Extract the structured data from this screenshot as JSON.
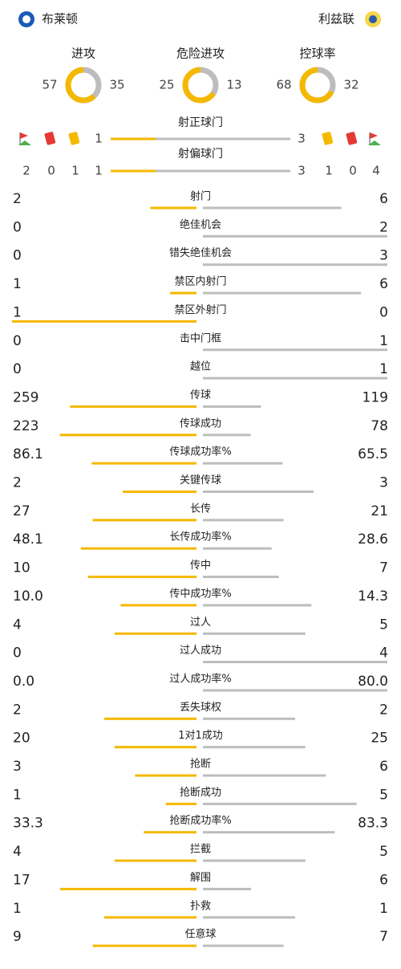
{
  "header": {
    "home": "布莱顿",
    "away": "利兹联"
  },
  "summary": [
    {
      "name": "进攻",
      "home": 57,
      "away": 35
    },
    {
      "name": "危险进攻",
      "home": 25,
      "away": 13
    },
    {
      "name": "控球率",
      "home": 68,
      "away": 32
    }
  ],
  "shots": [
    {
      "name": "射正球门",
      "home": 1,
      "away": 3
    },
    {
      "name": "射偏球门",
      "home": 1,
      "away": 3
    }
  ],
  "cards": {
    "home": {
      "corners": 2,
      "red": 0,
      "yellow": 1
    },
    "away": {
      "yellow": 1,
      "red": 0,
      "corners": 4
    }
  },
  "stats": [
    {
      "name": "射门",
      "home": 2,
      "away": 6
    },
    {
      "name": "绝佳机会",
      "home": 0,
      "away": 2
    },
    {
      "name": "错失绝佳机会",
      "home": 0,
      "away": 3
    },
    {
      "name": "禁区内射门",
      "home": 1,
      "away": 6
    },
    {
      "name": "禁区外射门",
      "home": 1,
      "away": 0
    },
    {
      "name": "击中门框",
      "home": 0,
      "away": 1
    },
    {
      "name": "越位",
      "home": 0,
      "away": 1
    },
    {
      "name": "传球",
      "home": 259,
      "away": 119
    },
    {
      "name": "传球成功",
      "home": 223,
      "away": 78
    },
    {
      "name": "传球成功率%",
      "home": 86.1,
      "away": 65.5
    },
    {
      "name": "关键传球",
      "home": 2,
      "away": 3
    },
    {
      "name": "长传",
      "home": 27,
      "away": 21
    },
    {
      "name": "长传成功率%",
      "home": 48.1,
      "away": 28.6
    },
    {
      "name": "传中",
      "home": 10,
      "away": 7
    },
    {
      "name": "传中成功率%",
      "home": {
        "value": 10,
        "label": "10.0"
      },
      "away": 14.3
    },
    {
      "name": "过人",
      "home": 4,
      "away": 5
    },
    {
      "name": "过人成功",
      "home": 0,
      "away": 4
    },
    {
      "name": "过人成功率%",
      "home": {
        "value": 0,
        "label": "0.0"
      },
      "away": {
        "value": 80,
        "label": "80.0"
      }
    },
    {
      "name": "丢失球权",
      "home": 2,
      "away": 2
    },
    {
      "name": "1对1成功",
      "home": 20,
      "away": 25
    },
    {
      "name": "抢断",
      "home": 3,
      "away": 6
    },
    {
      "name": "抢断成功",
      "home": 1,
      "away": 5
    },
    {
      "name": "抢断成功率%",
      "home": 33.3,
      "away": 83.3
    },
    {
      "name": "拦截",
      "home": 4,
      "away": 5
    },
    {
      "name": "解围",
      "home": 17,
      "away": 6
    },
    {
      "name": "扑救",
      "home": 1,
      "away": 1
    },
    {
      "name": "任意球",
      "home": 9,
      "away": 7
    }
  ]
}
